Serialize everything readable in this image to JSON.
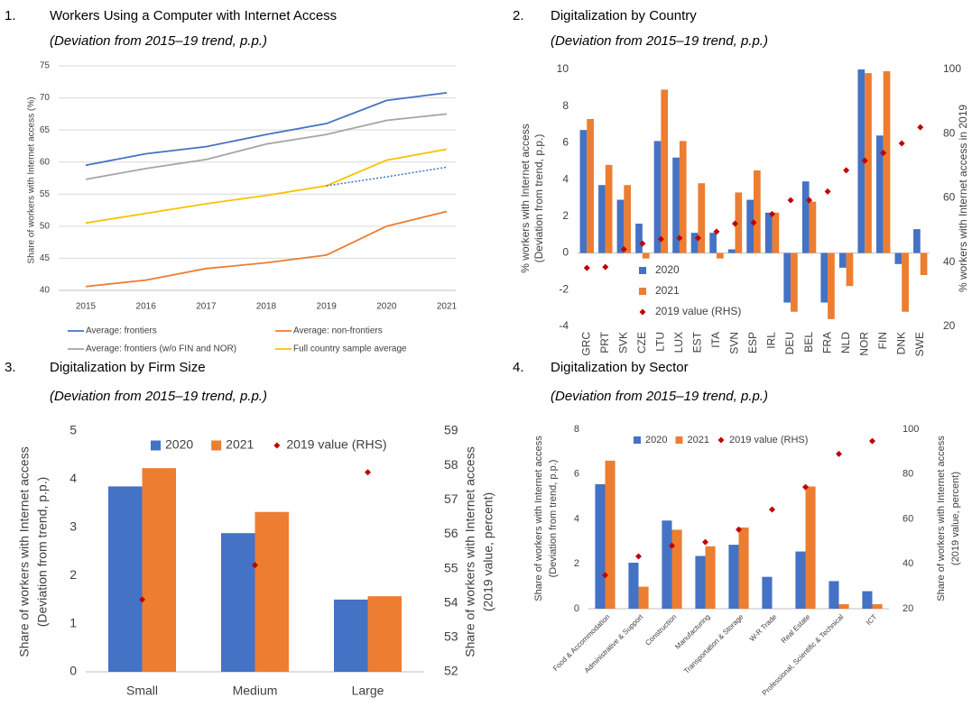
{
  "chart_data": [
    {
      "type": "line",
      "number": "1.",
      "title": "Workers Using a Computer with Internet Access",
      "subtitle": "(Deviation from 2015–19 trend, p.p.)",
      "ylabel": "Share of workers with Internet access (%)",
      "x": [
        2015,
        2016,
        2017,
        2018,
        2019,
        2020,
        2021
      ],
      "xlim": [
        2015,
        2021
      ],
      "xticks": [
        2015,
        2016,
        2017,
        2018,
        2019,
        2020,
        2021
      ],
      "ylim": [
        40,
        75
      ],
      "yticks": [
        40,
        45,
        50,
        55,
        60,
        65,
        70,
        75
      ],
      "grid": true,
      "legend": "bottom",
      "series": [
        {
          "name": "Average: frontiers",
          "color": "#4472c4",
          "values": [
            59.5,
            61.3,
            62.4,
            64.3,
            66.0,
            69.6,
            70.8
          ]
        },
        {
          "name": "Average: non-frontiers",
          "color": "#ed7d31",
          "values": [
            40.6,
            41.6,
            43.4,
            44.3,
            45.5,
            50.0,
            52.3
          ]
        },
        {
          "name": "Average: frontiers (w/o FIN and NOR)",
          "color": "#a5a5a5",
          "values": [
            57.3,
            59.0,
            60.4,
            62.8,
            64.3,
            66.5,
            67.5
          ]
        },
        {
          "name": "Full country sample average",
          "color": "#ffc000",
          "values": [
            50.5,
            52.0,
            53.5,
            54.8,
            56.3,
            60.3,
            62.0
          ]
        },
        {
          "color": "#4472c4",
          "style": "dotted",
          "values": [
            null,
            null,
            null,
            null,
            56.3,
            57.7,
            59.2
          ]
        }
      ]
    },
    {
      "type": "bar",
      "number": "2.",
      "title": "Digitalization by Country",
      "subtitle": "(Deviation from 2015–19 trend, p.p.)",
      "ylabel": [
        "% workers with Internet access",
        "(Deviation from trend, p.p.)"
      ],
      "y2label": "% workers with Internet access in 2019",
      "categories": [
        "GRC",
        "PRT",
        "SVK",
        "CZE",
        "LTU",
        "LUX",
        "EST",
        "ITA",
        "SVN",
        "ESP",
        "IRL",
        "DEU",
        "BEL",
        "FRA",
        "NLD",
        "NOR",
        "FIN",
        "DNK",
        "SWE"
      ],
      "ylim": [
        -4,
        10
      ],
      "yticks": [
        -4,
        -2,
        0,
        2,
        4,
        6,
        8,
        10
      ],
      "y2lim": [
        20,
        100
      ],
      "y2ticks": [
        20,
        40,
        60,
        80,
        100
      ],
      "legend": "lower left",
      "series": [
        {
          "name": "2020",
          "color": "#4472c4",
          "values": [
            6.7,
            3.7,
            2.9,
            1.6,
            6.1,
            5.2,
            1.1,
            1.1,
            0.2,
            2.9,
            2.2,
            -2.7,
            3.9,
            -2.7,
            -0.8,
            10.0,
            6.4,
            -0.6,
            1.3
          ]
        },
        {
          "name": "2021",
          "color": "#ed7d31",
          "values": [
            7.3,
            4.8,
            3.7,
            -0.3,
            8.9,
            6.1,
            3.8,
            -0.3,
            3.3,
            4.5,
            2.2,
            -3.2,
            2.8,
            -3.6,
            -1.8,
            9.8,
            9.9,
            -3.2,
            -1.2
          ]
        },
        {
          "name": "2019 value (RHS)",
          "color": "#c00000",
          "axis": "y2",
          "marker": "diamond",
          "values": [
            38.2,
            38.5,
            44.0,
            45.8,
            47.2,
            47.5,
            47.5,
            49.5,
            52.0,
            52.3,
            55.0,
            59.3,
            59.3,
            62.0,
            68.6,
            71.6,
            74.0,
            77.0,
            82.0
          ]
        }
      ]
    },
    {
      "type": "bar",
      "number": "3.",
      "title": "Digitalization by Firm Size",
      "subtitle": "(Deviation from 2015–19 trend, p.p.)",
      "ylabel": [
        "Share of workers with Internet access",
        "(Deviation from trend, p.p.)"
      ],
      "y2label": [
        "Share of workers with Internet access",
        "(2019 value, percent)"
      ],
      "categories": [
        "Small",
        "Medium",
        "Large"
      ],
      "ylim": [
        0,
        5
      ],
      "yticks": [
        0,
        1,
        2,
        3,
        4,
        5
      ],
      "y2lim": [
        52,
        59
      ],
      "y2ticks": [
        52,
        53,
        54,
        55,
        56,
        57,
        58,
        59
      ],
      "legend": "upper center",
      "series": [
        {
          "name": "2020",
          "color": "#4472c4",
          "values": [
            3.85,
            2.88,
            1.5
          ]
        },
        {
          "name": "2021",
          "color": "#ed7d31",
          "values": [
            4.23,
            3.32,
            1.57
          ]
        },
        {
          "name": "2019 value (RHS)",
          "color": "#c00000",
          "axis": "y2",
          "marker": "diamond",
          "values": [
            54.1,
            55.1,
            57.8
          ]
        }
      ]
    },
    {
      "type": "bar",
      "number": "4.",
      "title": "Digitalization by Sector",
      "subtitle": "(Deviation from 2015–19 trend, p.p.)",
      "ylabel": [
        "Share of workers with Internet access",
        "(Deviation from trend, p.p.)"
      ],
      "y2label": [
        "Share of workers with Internet access",
        "(2019 value, percent)"
      ],
      "categories": [
        "Food & Accommodation",
        "Administrative & Support",
        "Construction",
        "Manufacturing",
        "Transportation & Storage",
        "W-R Trade",
        "Real Estate",
        "Professional, Scientific & Technical",
        "ICT"
      ],
      "ylim": [
        0,
        8
      ],
      "yticks": [
        0,
        2,
        4,
        6,
        8
      ],
      "y2lim": [
        20,
        100
      ],
      "y2ticks": [
        20,
        40,
        60,
        80,
        100
      ],
      "legend": "upper center",
      "series": [
        {
          "name": "2020",
          "color": "#4472c4",
          "values": [
            5.55,
            2.05,
            3.93,
            2.35,
            2.85,
            1.42,
            2.55,
            1.23,
            0.78
          ]
        },
        {
          "name": "2021",
          "color": "#ed7d31",
          "values": [
            6.6,
            0.98,
            3.52,
            2.78,
            3.62,
            null,
            5.45,
            0.2,
            0.2
          ]
        },
        {
          "name": "2019 value (RHS)",
          "color": "#c00000",
          "axis": "y2",
          "marker": "diamond",
          "values": [
            34.9,
            43.3,
            48.1,
            49.7,
            55.3,
            64.2,
            74.2,
            89.0,
            94.7
          ]
        }
      ]
    }
  ]
}
